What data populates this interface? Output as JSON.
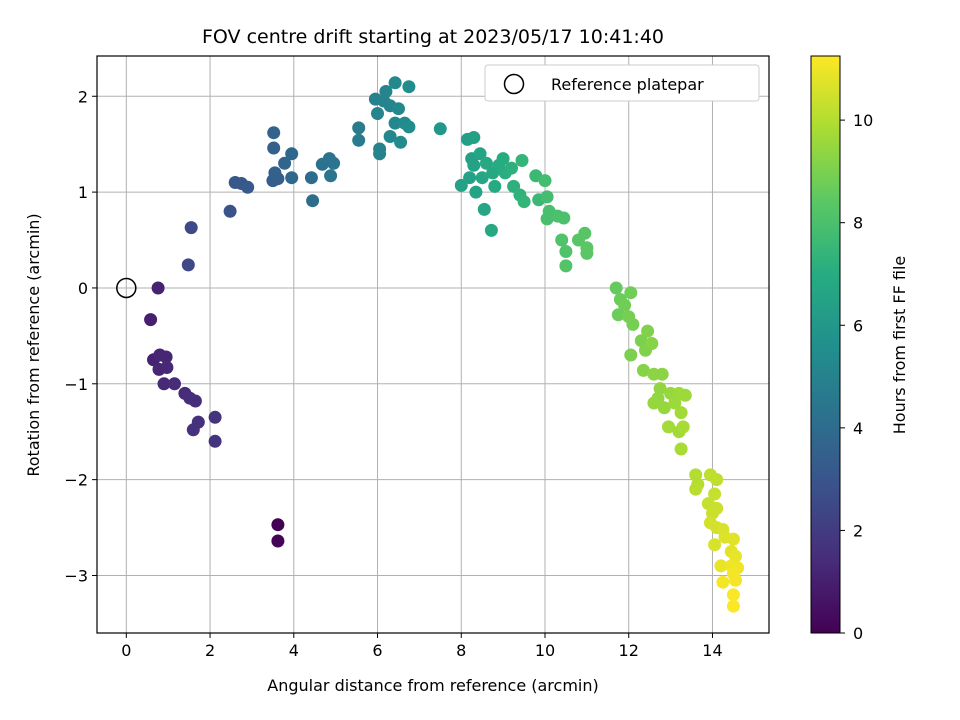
{
  "chart_data": {
    "type": "scatter",
    "title": "FOV centre drift starting at 2023/05/17 10:41:40",
    "xlabel": "Angular distance from reference (arcmin)",
    "ylabel": "Rotation from reference (arcmin)",
    "xlim": [
      -0.7,
      15.35
    ],
    "ylim": [
      -3.6,
      2.42
    ],
    "xticks": [
      0,
      2,
      4,
      6,
      8,
      10,
      12,
      14
    ],
    "yticks": [
      2,
      1,
      0,
      -1,
      -2,
      -3
    ],
    "xtick_labels": [
      "0",
      "2",
      "4",
      "6",
      "8",
      "10",
      "12",
      "14"
    ],
    "ytick_labels": [
      "2",
      "1",
      "0",
      "−1",
      "−2",
      "−3"
    ],
    "grid": true,
    "legend": {
      "label": "Reference platepar",
      "placement": "top-right"
    },
    "reference_point": {
      "x": 0,
      "y": 0
    },
    "colorbar": {
      "label": "Hours from first FF file",
      "colormap": "viridis",
      "range": [
        0,
        11.25
      ],
      "ticks": [
        0,
        2,
        4,
        6,
        8,
        10
      ],
      "tick_labels": [
        "0",
        "2",
        "4",
        "6",
        "8",
        "10"
      ]
    },
    "points": [
      {
        "x": 3.62,
        "y": -2.47,
        "c": 0.0
      },
      {
        "x": 3.62,
        "y": -2.64,
        "c": 0.1
      },
      {
        "x": 0.58,
        "y": -0.33,
        "c": 1.0
      },
      {
        "x": 0.76,
        "y": 0.0,
        "c": 1.1
      },
      {
        "x": 0.65,
        "y": -0.75,
        "c": 1.1
      },
      {
        "x": 0.8,
        "y": -0.7,
        "c": 1.2
      },
      {
        "x": 0.95,
        "y": -0.72,
        "c": 1.2
      },
      {
        "x": 0.78,
        "y": -0.85,
        "c": 1.2
      },
      {
        "x": 0.97,
        "y": -0.83,
        "c": 1.3
      },
      {
        "x": 0.9,
        "y": -1.0,
        "c": 1.3
      },
      {
        "x": 1.15,
        "y": -1.0,
        "c": 1.4
      },
      {
        "x": 1.4,
        "y": -1.1,
        "c": 1.4
      },
      {
        "x": 1.52,
        "y": -1.15,
        "c": 1.5
      },
      {
        "x": 1.65,
        "y": -1.18,
        "c": 1.5
      },
      {
        "x": 1.6,
        "y": -1.48,
        "c": 1.6
      },
      {
        "x": 1.72,
        "y": -1.4,
        "c": 1.6
      },
      {
        "x": 2.12,
        "y": -1.35,
        "c": 1.7
      },
      {
        "x": 2.12,
        "y": -1.6,
        "c": 1.7
      },
      {
        "x": 1.48,
        "y": 0.24,
        "c": 2.5
      },
      {
        "x": 1.55,
        "y": 0.63,
        "c": 2.5
      },
      {
        "x": 2.48,
        "y": 0.8,
        "c": 2.9
      },
      {
        "x": 2.6,
        "y": 1.1,
        "c": 3.1
      },
      {
        "x": 2.75,
        "y": 1.09,
        "c": 3.1
      },
      {
        "x": 2.9,
        "y": 1.05,
        "c": 3.2
      },
      {
        "x": 3.5,
        "y": 1.12,
        "c": 3.4
      },
      {
        "x": 3.62,
        "y": 1.14,
        "c": 3.4
      },
      {
        "x": 3.55,
        "y": 1.2,
        "c": 3.5
      },
      {
        "x": 3.52,
        "y": 1.46,
        "c": 3.5
      },
      {
        "x": 3.52,
        "y": 1.62,
        "c": 3.6
      },
      {
        "x": 3.78,
        "y": 1.3,
        "c": 3.7
      },
      {
        "x": 3.95,
        "y": 1.4,
        "c": 3.8
      },
      {
        "x": 3.95,
        "y": 1.15,
        "c": 3.8
      },
      {
        "x": 4.42,
        "y": 1.15,
        "c": 4.0
      },
      {
        "x": 4.45,
        "y": 0.91,
        "c": 4.0
      },
      {
        "x": 4.68,
        "y": 1.29,
        "c": 4.2
      },
      {
        "x": 4.85,
        "y": 1.35,
        "c": 4.3
      },
      {
        "x": 4.95,
        "y": 1.3,
        "c": 4.3
      },
      {
        "x": 4.88,
        "y": 1.17,
        "c": 4.4
      },
      {
        "x": 5.55,
        "y": 1.67,
        "c": 4.7
      },
      {
        "x": 5.55,
        "y": 1.54,
        "c": 4.7
      },
      {
        "x": 5.95,
        "y": 1.97,
        "c": 4.9
      },
      {
        "x": 6.05,
        "y": 1.4,
        "c": 5.0
      },
      {
        "x": 6.05,
        "y": 1.45,
        "c": 5.0
      },
      {
        "x": 6.15,
        "y": 1.95,
        "c": 5.0
      },
      {
        "x": 6.2,
        "y": 2.05,
        "c": 5.1
      },
      {
        "x": 6.3,
        "y": 1.9,
        "c": 5.1
      },
      {
        "x": 6.3,
        "y": 1.58,
        "c": 5.2
      },
      {
        "x": 6.42,
        "y": 1.72,
        "c": 5.2
      },
      {
        "x": 6.42,
        "y": 2.14,
        "c": 5.3
      },
      {
        "x": 6.5,
        "y": 1.87,
        "c": 5.3
      },
      {
        "x": 6.55,
        "y": 1.52,
        "c": 5.4
      },
      {
        "x": 6.65,
        "y": 1.72,
        "c": 5.4
      },
      {
        "x": 6.75,
        "y": 1.68,
        "c": 5.5
      },
      {
        "x": 6.75,
        "y": 2.1,
        "c": 5.5
      },
      {
        "x": 6.0,
        "y": 1.82,
        "c": 5.1
      },
      {
        "x": 7.5,
        "y": 1.66,
        "c": 6.0
      },
      {
        "x": 8.15,
        "y": 1.55,
        "c": 6.3
      },
      {
        "x": 8.3,
        "y": 1.57,
        "c": 6.4
      },
      {
        "x": 8.25,
        "y": 1.35,
        "c": 6.4
      },
      {
        "x": 8.3,
        "y": 1.28,
        "c": 6.5
      },
      {
        "x": 8.2,
        "y": 1.15,
        "c": 6.5
      },
      {
        "x": 8.0,
        "y": 1.07,
        "c": 6.5
      },
      {
        "x": 8.45,
        "y": 1.4,
        "c": 6.6
      },
      {
        "x": 8.35,
        "y": 1.0,
        "c": 6.6
      },
      {
        "x": 8.5,
        "y": 1.15,
        "c": 6.7
      },
      {
        "x": 8.55,
        "y": 0.82,
        "c": 6.7
      },
      {
        "x": 8.6,
        "y": 1.3,
        "c": 6.8
      },
      {
        "x": 8.75,
        "y": 1.2,
        "c": 6.8
      },
      {
        "x": 8.72,
        "y": 0.6,
        "c": 6.8
      },
      {
        "x": 8.8,
        "y": 1.06,
        "c": 6.9
      },
      {
        "x": 8.9,
        "y": 1.28,
        "c": 7.0
      },
      {
        "x": 9.0,
        "y": 1.35,
        "c": 7.0
      },
      {
        "x": 9.05,
        "y": 1.2,
        "c": 7.1
      },
      {
        "x": 9.2,
        "y": 1.25,
        "c": 7.2
      },
      {
        "x": 9.25,
        "y": 1.06,
        "c": 7.2
      },
      {
        "x": 9.4,
        "y": 0.97,
        "c": 7.3
      },
      {
        "x": 9.45,
        "y": 1.33,
        "c": 7.4
      },
      {
        "x": 9.5,
        "y": 0.9,
        "c": 7.4
      },
      {
        "x": 9.78,
        "y": 1.17,
        "c": 7.6
      },
      {
        "x": 9.85,
        "y": 0.92,
        "c": 7.6
      },
      {
        "x": 10.0,
        "y": 1.12,
        "c": 7.8
      },
      {
        "x": 10.05,
        "y": 0.95,
        "c": 7.8
      },
      {
        "x": 10.1,
        "y": 0.8,
        "c": 7.9
      },
      {
        "x": 10.05,
        "y": 0.72,
        "c": 7.9
      },
      {
        "x": 10.3,
        "y": 0.75,
        "c": 8.0
      },
      {
        "x": 10.45,
        "y": 0.73,
        "c": 8.0
      },
      {
        "x": 10.4,
        "y": 0.5,
        "c": 8.1
      },
      {
        "x": 10.5,
        "y": 0.38,
        "c": 8.1
      },
      {
        "x": 10.5,
        "y": 0.23,
        "c": 8.2
      },
      {
        "x": 10.8,
        "y": 0.5,
        "c": 8.3
      },
      {
        "x": 10.95,
        "y": 0.57,
        "c": 8.3
      },
      {
        "x": 11.0,
        "y": 0.42,
        "c": 8.4
      },
      {
        "x": 11.0,
        "y": 0.36,
        "c": 8.4
      },
      {
        "x": 11.7,
        "y": 0.0,
        "c": 8.6
      },
      {
        "x": 11.8,
        "y": -0.12,
        "c": 8.7
      },
      {
        "x": 11.75,
        "y": -0.28,
        "c": 8.7
      },
      {
        "x": 11.9,
        "y": -0.18,
        "c": 8.8
      },
      {
        "x": 12.05,
        "y": -0.05,
        "c": 8.8
      },
      {
        "x": 12.0,
        "y": -0.3,
        "c": 8.9
      },
      {
        "x": 12.1,
        "y": -0.38,
        "c": 8.9
      },
      {
        "x": 12.05,
        "y": -0.7,
        "c": 9.0
      },
      {
        "x": 12.3,
        "y": -0.55,
        "c": 9.0
      },
      {
        "x": 12.45,
        "y": -0.45,
        "c": 9.1
      },
      {
        "x": 12.4,
        "y": -0.65,
        "c": 9.1
      },
      {
        "x": 12.55,
        "y": -0.58,
        "c": 9.2
      },
      {
        "x": 12.35,
        "y": -0.86,
        "c": 9.2
      },
      {
        "x": 12.6,
        "y": -0.9,
        "c": 9.3
      },
      {
        "x": 12.8,
        "y": -0.9,
        "c": 9.3
      },
      {
        "x": 12.75,
        "y": -1.05,
        "c": 9.4
      },
      {
        "x": 12.7,
        "y": -1.15,
        "c": 9.4
      },
      {
        "x": 12.6,
        "y": -1.2,
        "c": 9.5
      },
      {
        "x": 12.85,
        "y": -1.25,
        "c": 9.5
      },
      {
        "x": 13.0,
        "y": -1.1,
        "c": 9.5
      },
      {
        "x": 13.1,
        "y": -1.2,
        "c": 9.6
      },
      {
        "x": 13.2,
        "y": -1.1,
        "c": 9.6
      },
      {
        "x": 13.35,
        "y": -1.12,
        "c": 9.6
      },
      {
        "x": 13.25,
        "y": -1.3,
        "c": 9.7
      },
      {
        "x": 12.95,
        "y": -1.45,
        "c": 9.7
      },
      {
        "x": 13.2,
        "y": -1.5,
        "c": 9.7
      },
      {
        "x": 13.3,
        "y": -1.45,
        "c": 9.8
      },
      {
        "x": 13.25,
        "y": -1.68,
        "c": 9.8
      },
      {
        "x": 13.6,
        "y": -1.95,
        "c": 10.0
      },
      {
        "x": 13.65,
        "y": -2.05,
        "c": 10.0
      },
      {
        "x": 13.6,
        "y": -2.1,
        "c": 10.1
      },
      {
        "x": 13.95,
        "y": -1.95,
        "c": 10.2
      },
      {
        "x": 14.1,
        "y": -2.0,
        "c": 10.2
      },
      {
        "x": 14.05,
        "y": -2.15,
        "c": 10.3
      },
      {
        "x": 13.9,
        "y": -2.25,
        "c": 10.3
      },
      {
        "x": 14.0,
        "y": -2.35,
        "c": 10.4
      },
      {
        "x": 14.1,
        "y": -2.3,
        "c": 10.4
      },
      {
        "x": 13.95,
        "y": -2.45,
        "c": 10.5
      },
      {
        "x": 14.1,
        "y": -2.5,
        "c": 10.5
      },
      {
        "x": 14.25,
        "y": -2.52,
        "c": 10.6
      },
      {
        "x": 14.05,
        "y": -2.68,
        "c": 10.6
      },
      {
        "x": 14.3,
        "y": -2.6,
        "c": 10.7
      },
      {
        "x": 14.5,
        "y": -2.62,
        "c": 10.8
      },
      {
        "x": 14.45,
        "y": -2.75,
        "c": 10.8
      },
      {
        "x": 14.55,
        "y": -2.8,
        "c": 10.9
      },
      {
        "x": 14.2,
        "y": -2.9,
        "c": 10.9
      },
      {
        "x": 14.45,
        "y": -2.9,
        "c": 11.0
      },
      {
        "x": 14.6,
        "y": -2.92,
        "c": 11.0
      },
      {
        "x": 14.5,
        "y": -2.98,
        "c": 11.1
      },
      {
        "x": 14.25,
        "y": -3.07,
        "c": 11.1
      },
      {
        "x": 14.55,
        "y": -3.05,
        "c": 11.1
      },
      {
        "x": 14.5,
        "y": -3.2,
        "c": 11.2
      },
      {
        "x": 14.5,
        "y": -3.32,
        "c": 11.25
      }
    ]
  }
}
